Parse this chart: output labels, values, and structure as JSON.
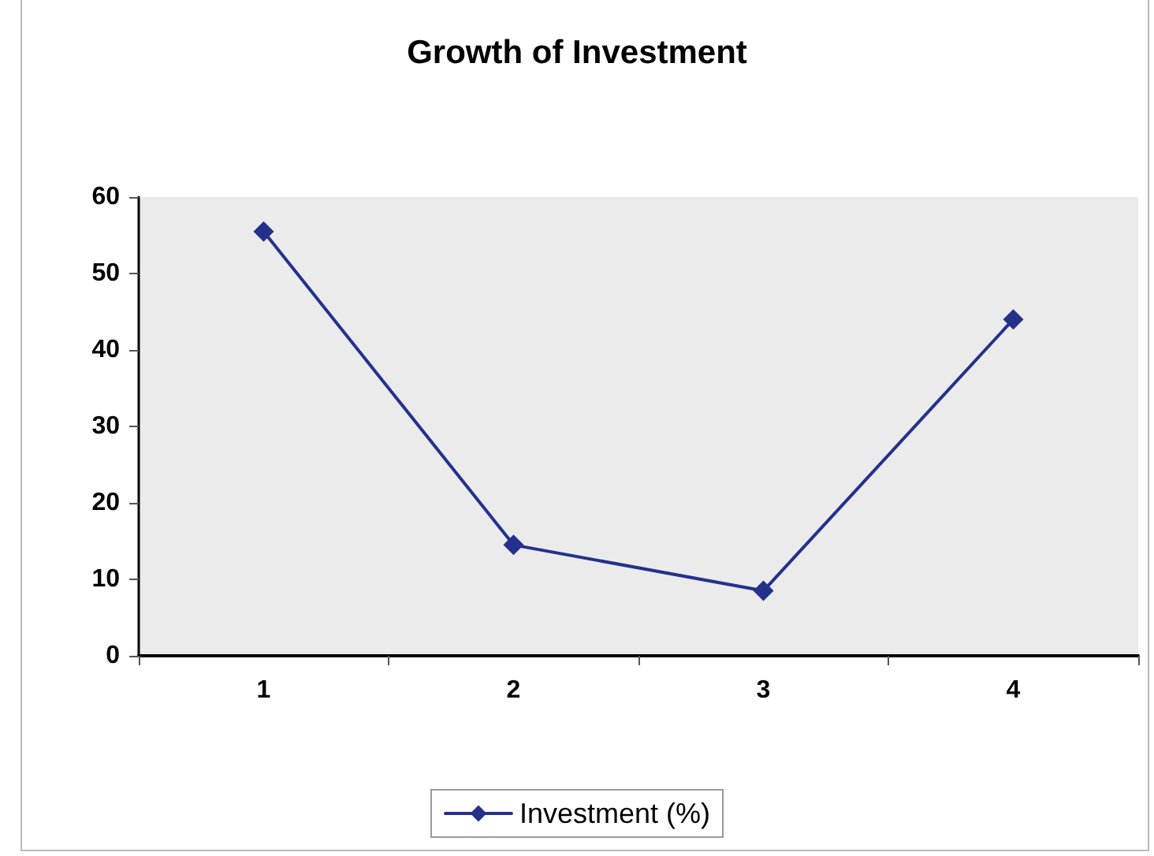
{
  "chart_data": {
    "type": "line",
    "title": "Growth of Investment",
    "categories": [
      "1",
      "2",
      "3",
      "4"
    ],
    "series": [
      {
        "name": "Investment (%)",
        "color": "#24318c",
        "values": [
          55.5,
          14.5,
          8.5,
          44
        ]
      }
    ],
    "ylim": [
      0,
      60
    ],
    "yticks": [
      0,
      10,
      20,
      30,
      40,
      50,
      60
    ],
    "grid": false,
    "legend": "bottom",
    "marker": "diamond"
  }
}
